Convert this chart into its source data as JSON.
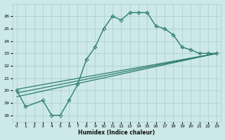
{
  "xlabel": "Humidex (Indice chaleur)",
  "ylabel": "",
  "bg_color": "#cce8e8",
  "grid_color": "#aacccc",
  "line_color": "#2e7d6e",
  "xlim": [
    -0.5,
    23.5
  ],
  "ylim": [
    17.5,
    27.0
  ],
  "xticks": [
    0,
    1,
    2,
    3,
    4,
    5,
    6,
    7,
    8,
    9,
    10,
    11,
    12,
    13,
    14,
    15,
    16,
    17,
    18,
    19,
    20,
    21,
    22,
    23
  ],
  "yticks": [
    18,
    19,
    20,
    21,
    22,
    23,
    24,
    25,
    26
  ],
  "series": [
    {
      "x": [
        0,
        1,
        3,
        4,
        5,
        6,
        7,
        8,
        9,
        10,
        11,
        12,
        13,
        14,
        15,
        16,
        17,
        18,
        19,
        20,
        21,
        22,
        23
      ],
      "y": [
        20,
        18.7,
        19.2,
        18.0,
        18.0,
        19.2,
        20.5,
        22.5,
        23.5,
        25.0,
        26.0,
        25.7,
        26.3,
        26.3,
        26.3,
        25.2,
        25.0,
        24.5,
        23.5,
        23.3,
        23.0,
        23.0,
        23.0
      ],
      "marker": "D",
      "markersize": 2.5,
      "linewidth": 1.0
    },
    {
      "x": [
        0,
        23
      ],
      "y": [
        19.5,
        23.0
      ],
      "marker": null,
      "linewidth": 0.9
    },
    {
      "x": [
        0,
        23
      ],
      "y": [
        19.8,
        23.0
      ],
      "marker": null,
      "linewidth": 0.9
    },
    {
      "x": [
        0,
        23
      ],
      "y": [
        20.1,
        23.0
      ],
      "marker": null,
      "linewidth": 0.9
    }
  ]
}
